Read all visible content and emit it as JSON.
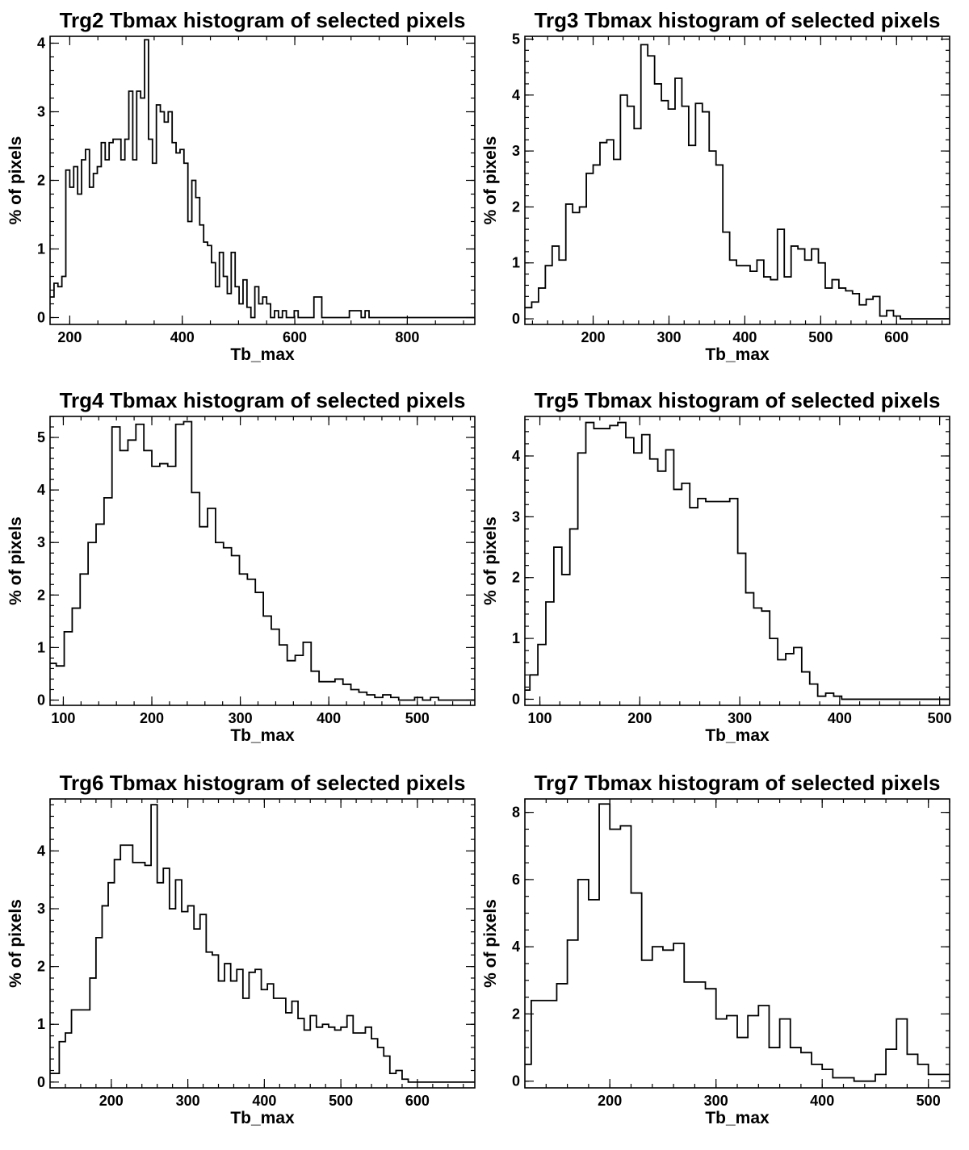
{
  "chart_data": [
    {
      "type": "histogram",
      "title": "Trg2 Tbmax histogram of selected pixels",
      "xlabel": "Tb_max",
      "ylabel": "% of pixels",
      "xlim": [
        165,
        920
      ],
      "ylim": [
        -0.1,
        4.1
      ],
      "xticks": [
        200,
        400,
        600,
        800
      ],
      "yticks": [
        0,
        1,
        2,
        3,
        4
      ],
      "grid": false,
      "x_edges": [
        165,
        172,
        179,
        186,
        193,
        200,
        207,
        214,
        221,
        228,
        235,
        242,
        249,
        256,
        263,
        270,
        277,
        284,
        291,
        298,
        305,
        312,
        319,
        326,
        333,
        340,
        347,
        354,
        361,
        368,
        375,
        382,
        389,
        396,
        403,
        410,
        417,
        424,
        431,
        438,
        445,
        452,
        459,
        466,
        473,
        480,
        487,
        494,
        501,
        508,
        515,
        522,
        529,
        536,
        543,
        550,
        557,
        564,
        571,
        578,
        585,
        592,
        599,
        606,
        613,
        620,
        627,
        634,
        641,
        648,
        655,
        662,
        669,
        676,
        683,
        690,
        697,
        704,
        711,
        718,
        725,
        732,
        739,
        746,
        753,
        760,
        767,
        774,
        781,
        788,
        795,
        802,
        809,
        816,
        823,
        830,
        837,
        844,
        851,
        858,
        865,
        872,
        879,
        886,
        893,
        900,
        907,
        914,
        920
      ],
      "values": [
        0.3,
        0.5,
        0.45,
        0.6,
        2.15,
        1.9,
        2.2,
        1.8,
        2.3,
        2.45,
        1.9,
        2.1,
        2.2,
        2.55,
        2.3,
        2.55,
        2.6,
        2.6,
        2.3,
        2.6,
        3.3,
        2.3,
        3.3,
        3.2,
        4.05,
        2.6,
        2.25,
        3.1,
        3.0,
        2.85,
        3.0,
        2.55,
        2.4,
        2.45,
        2.25,
        1.4,
        2.0,
        1.75,
        1.35,
        1.1,
        1.05,
        0.8,
        0.45,
        0.95,
        0.6,
        0.35,
        0.95,
        0.45,
        0.2,
        0.55,
        0.15,
        0.0,
        0.45,
        0.2,
        0.3,
        0.2,
        0.0,
        0.1,
        0.0,
        0.1,
        0.0,
        0.0,
        0.1,
        0.0,
        0.0,
        0.0,
        0.0,
        0.3,
        0.3,
        0.0,
        0.0,
        0.0,
        0.0,
        0.0,
        0.0,
        0.0,
        0.1,
        0.1,
        0.1,
        0.0,
        0.1,
        0.0,
        0.0,
        0.0,
        0.0,
        0.0,
        0.0,
        0.0,
        0.0,
        0.0,
        0.0,
        0.0,
        0.0,
        0.0,
        0.0,
        0.0,
        0.0,
        0.0,
        0.0,
        0.0,
        0.0,
        0.0,
        0.0,
        0.0,
        0.0,
        0.0,
        0.0,
        0.0
      ]
    },
    {
      "type": "histogram",
      "title": "Trg3 Tbmax histogram of selected pixels",
      "xlabel": "Tb_max",
      "ylabel": "% of pixels",
      "xlim": [
        110,
        670
      ],
      "ylim": [
        -0.1,
        5.05
      ],
      "xticks": [
        200,
        300,
        400,
        500,
        600
      ],
      "yticks": [
        0,
        1,
        2,
        3,
        4,
        5
      ],
      "grid": false,
      "x_edges": [
        110,
        119,
        128,
        137,
        146,
        155,
        164,
        173,
        182,
        191,
        200,
        209,
        218,
        227,
        236,
        245,
        254,
        263,
        272,
        281,
        290,
        299,
        308,
        317,
        326,
        335,
        344,
        353,
        362,
        371,
        380,
        389,
        398,
        407,
        416,
        425,
        434,
        443,
        452,
        461,
        470,
        479,
        488,
        497,
        506,
        515,
        524,
        533,
        542,
        551,
        560,
        569,
        578,
        587,
        596,
        605,
        614,
        623,
        632,
        641,
        650,
        659,
        670
      ],
      "values": [
        0.2,
        0.3,
        0.55,
        0.95,
        1.3,
        1.05,
        2.05,
        1.9,
        2.0,
        2.6,
        2.75,
        3.15,
        3.2,
        2.85,
        4.0,
        3.8,
        3.4,
        4.9,
        4.7,
        4.2,
        3.9,
        3.75,
        4.3,
        3.8,
        3.1,
        3.85,
        3.7,
        3.0,
        2.75,
        1.55,
        1.05,
        0.95,
        0.95,
        0.85,
        1.05,
        0.75,
        0.7,
        1.6,
        0.75,
        1.3,
        1.25,
        1.05,
        1.25,
        1.0,
        0.55,
        0.7,
        0.55,
        0.5,
        0.45,
        0.25,
        0.35,
        0.4,
        0.05,
        0.15,
        0.05,
        0.0,
        0.0,
        0.0,
        0.0,
        0.0,
        0.0,
        0.0
      ]
    },
    {
      "type": "histogram",
      "title": "Trg4 Tbmax histogram of selected pixels",
      "xlabel": "Tb_max",
      "ylabel": "% of pixels",
      "xlim": [
        85,
        565
      ],
      "ylim": [
        -0.1,
        5.4
      ],
      "xticks": [
        100,
        200,
        300,
        400,
        500
      ],
      "yticks": [
        0,
        1,
        2,
        3,
        4,
        5
      ],
      "grid": false,
      "x_edges": [
        85,
        92,
        101,
        110,
        119,
        128,
        137,
        146,
        155,
        164,
        173,
        182,
        191,
        200,
        209,
        218,
        227,
        236,
        245,
        254,
        263,
        272,
        281,
        290,
        299,
        308,
        317,
        326,
        335,
        344,
        353,
        362,
        371,
        380,
        389,
        398,
        407,
        416,
        425,
        434,
        443,
        452,
        461,
        470,
        479,
        488,
        497,
        506,
        515,
        524,
        533,
        542,
        551,
        560,
        565
      ],
      "values": [
        0.7,
        0.65,
        1.3,
        1.75,
        2.4,
        3.0,
        3.35,
        3.85,
        5.2,
        4.75,
        4.95,
        5.25,
        4.75,
        4.45,
        4.5,
        4.45,
        5.25,
        5.3,
        3.95,
        3.3,
        3.65,
        3.0,
        2.9,
        2.75,
        2.4,
        2.3,
        2.05,
        1.6,
        1.35,
        1.05,
        0.75,
        0.85,
        1.1,
        0.55,
        0.35,
        0.35,
        0.4,
        0.3,
        0.2,
        0.15,
        0.1,
        0.05,
        0.1,
        0.05,
        0.0,
        0.0,
        0.05,
        0.0,
        0.05,
        0.0,
        0.0,
        0.0,
        0.0,
        0.0
      ]
    },
    {
      "type": "histogram",
      "title": "Trg5 Tbmax histogram of selected pixels",
      "xlabel": "Tb_max",
      "ylabel": "% of pixels",
      "xlim": [
        85,
        510
      ],
      "ylim": [
        -0.1,
        4.65
      ],
      "xticks": [
        100,
        200,
        300,
        400,
        500
      ],
      "yticks": [
        0,
        1,
        2,
        3,
        4
      ],
      "grid": false,
      "x_edges": [
        85,
        90,
        98,
        106,
        114,
        122,
        130,
        138,
        146,
        154,
        162,
        170,
        178,
        186,
        194,
        202,
        210,
        218,
        226,
        234,
        242,
        250,
        258,
        266,
        274,
        282,
        290,
        298,
        306,
        314,
        322,
        330,
        338,
        346,
        354,
        362,
        370,
        378,
        386,
        394,
        402,
        410,
        418,
        426,
        434,
        442,
        450,
        458,
        466,
        474,
        482,
        490,
        498,
        510
      ],
      "values": [
        0.15,
        0.4,
        0.9,
        1.6,
        2.5,
        2.05,
        2.8,
        4.05,
        4.55,
        4.45,
        4.45,
        4.5,
        4.55,
        4.3,
        4.05,
        4.35,
        3.95,
        3.75,
        4.1,
        3.45,
        3.55,
        3.15,
        3.3,
        3.25,
        3.25,
        3.25,
        3.3,
        2.4,
        1.75,
        1.5,
        1.45,
        1.0,
        0.65,
        0.75,
        0.85,
        0.45,
        0.25,
        0.05,
        0.1,
        0.05,
        0.0,
        0.0,
        0.0,
        0.0,
        0.0,
        0.0,
        0.0,
        0.0,
        0.0,
        0.0,
        0.0,
        0.0,
        0.0
      ]
    },
    {
      "type": "histogram",
      "title": "Trg6 Tbmax histogram of selected pixels",
      "xlabel": "Tb_max",
      "ylabel": "% of pixels",
      "xlim": [
        120,
        675
      ],
      "ylim": [
        -0.1,
        4.9
      ],
      "xticks": [
        200,
        300,
        400,
        500,
        600
      ],
      "yticks": [
        0,
        1,
        2,
        3,
        4
      ],
      "grid": false,
      "x_edges": [
        120,
        132,
        140,
        148,
        156,
        164,
        172,
        180,
        188,
        196,
        204,
        212,
        220,
        228,
        236,
        244,
        252,
        260,
        268,
        276,
        284,
        292,
        300,
        308,
        316,
        324,
        332,
        340,
        348,
        356,
        364,
        372,
        380,
        388,
        396,
        404,
        412,
        420,
        428,
        436,
        444,
        452,
        460,
        468,
        476,
        484,
        492,
        500,
        508,
        516,
        524,
        532,
        540,
        548,
        556,
        564,
        572,
        580,
        588,
        596,
        604,
        612,
        620,
        628,
        636,
        644,
        652,
        660,
        675
      ],
      "values": [
        0.15,
        0.7,
        0.85,
        1.25,
        1.25,
        1.25,
        1.8,
        2.5,
        3.05,
        3.45,
        3.85,
        4.1,
        4.1,
        3.8,
        3.8,
        3.75,
        4.8,
        3.45,
        3.7,
        3.0,
        3.5,
        2.95,
        3.05,
        2.65,
        2.9,
        2.25,
        2.2,
        1.75,
        2.05,
        1.75,
        1.95,
        1.45,
        1.9,
        1.95,
        1.6,
        1.7,
        1.45,
        1.45,
        1.2,
        1.4,
        1.1,
        0.9,
        1.15,
        0.95,
        1.0,
        0.95,
        0.9,
        0.95,
        1.15,
        0.85,
        0.85,
        0.95,
        0.75,
        0.6,
        0.45,
        0.15,
        0.2,
        0.05,
        0.0,
        0.0,
        0.0,
        0.0,
        0.0,
        0.0,
        0.0,
        0.0,
        0.0,
        0.0
      ]
    },
    {
      "type": "histogram",
      "title": "Trg7 Tbmax histogram of selected pixels",
      "xlabel": "Tb_max",
      "ylabel": "% of pixels",
      "xlim": [
        120,
        520
      ],
      "ylim": [
        -0.2,
        8.4
      ],
      "xticks": [
        200,
        300,
        400,
        500
      ],
      "yticks": [
        0,
        2,
        4,
        6,
        8
      ],
      "grid": false,
      "x_edges": [
        120,
        126,
        140,
        150,
        160,
        170,
        180,
        190,
        200,
        210,
        220,
        230,
        240,
        250,
        260,
        270,
        280,
        290,
        300,
        310,
        320,
        330,
        340,
        350,
        360,
        370,
        380,
        390,
        400,
        410,
        420,
        430,
        440,
        450,
        460,
        470,
        480,
        490,
        500,
        510,
        520
      ],
      "values": [
        0.5,
        2.4,
        2.4,
        2.9,
        4.2,
        6.0,
        5.4,
        8.25,
        7.5,
        7.6,
        5.6,
        3.6,
        4.0,
        3.9,
        4.1,
        2.95,
        2.95,
        2.75,
        1.85,
        1.95,
        1.3,
        1.95,
        2.25,
        1.0,
        1.85,
        1.0,
        0.85,
        0.5,
        0.35,
        0.1,
        0.1,
        0.0,
        0.0,
        0.2,
        0.95,
        1.85,
        0.8,
        0.5,
        0.2,
        0.2
      ]
    }
  ]
}
